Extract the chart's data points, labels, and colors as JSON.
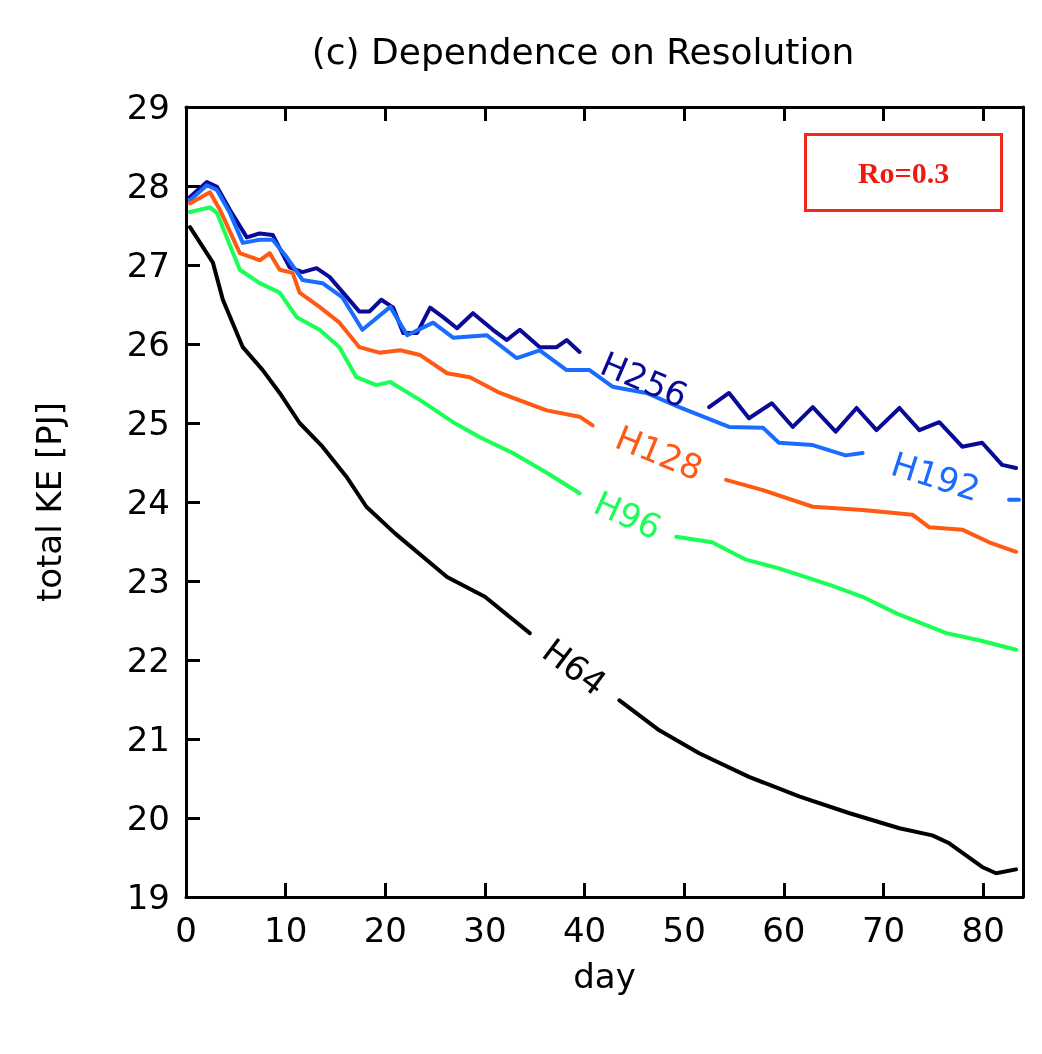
{
  "chart_data": {
    "type": "line",
    "title": "(c) Dependence on Resolution",
    "xlabel": "day",
    "ylabel": "total KE [PJ]",
    "annotations": [
      "Ro=0.3"
    ],
    "xlim": [
      0,
      84
    ],
    "xticks": [
      0,
      10,
      20,
      30,
      40,
      50,
      60,
      70,
      80
    ],
    "ylim": [
      19,
      29
    ],
    "yticks": [
      19,
      20,
      21,
      22,
      23,
      24,
      25,
      26,
      27,
      28,
      29
    ],
    "grid": false,
    "legend": false,
    "marker": "none",
    "line_style": "solid",
    "series": [
      {
        "name": "H256",
        "color": "#0a0a96",
        "x": [
          0.4,
          2.1,
          3.1,
          4.4,
          6.1,
          7.4,
          8.7,
          10.4,
          11.7,
          13.1,
          14.4,
          17.4,
          18.4,
          19.6,
          20.8,
          21.8,
          23.2,
          24.5,
          25.8,
          27.2,
          28.8,
          30.8,
          32.2,
          33.5,
          35.5,
          37.2,
          38.2,
          39.5,
          46,
          52.5,
          54.5,
          56.5,
          58.8,
          60.9,
          62.9,
          65.2,
          67.3,
          69.3,
          71.6,
          73.6,
          75.6,
          77.9,
          79.9,
          81.9,
          83.3
        ],
        "values": [
          27.86,
          28.05,
          27.99,
          27.7,
          27.35,
          27.4,
          27.38,
          26.97,
          26.91,
          26.96,
          26.85,
          26.41,
          26.41,
          26.56,
          26.46,
          26.14,
          26.14,
          26.46,
          26.34,
          26.2,
          26.39,
          26.18,
          26.05,
          26.18,
          25.96,
          25.96,
          26.05,
          25.9,
          null,
          25.2,
          25.38,
          25.06,
          25.25,
          24.95,
          25.2,
          24.89,
          25.19,
          24.91,
          25.19,
          24.91,
          25.01,
          24.7,
          24.75,
          24.47,
          24.43
        ]
      },
      {
        "name": "H192",
        "color": "#1a6cff",
        "x": [
          0.4,
          2.1,
          3.1,
          4.4,
          5.7,
          7.4,
          8.7,
          10.1,
          11.7,
          13.7,
          15.7,
          17.7,
          20.5,
          22.2,
          24.8,
          26.8,
          30.2,
          33.2,
          35.5,
          38.2,
          40.5,
          42.8,
          46.2,
          49.5,
          54.5,
          57.9,
          59.5,
          62.9,
          66.2,
          67.9,
          75,
          82.6,
          83.6
        ],
        "values": [
          27.82,
          28.01,
          27.95,
          27.66,
          27.28,
          27.32,
          27.32,
          27.1,
          26.81,
          26.77,
          26.59,
          26.18,
          26.47,
          26.11,
          26.27,
          26.08,
          26.11,
          25.82,
          25.92,
          25.67,
          25.67,
          25.46,
          25.38,
          25.2,
          24.95,
          24.94,
          24.75,
          24.72,
          24.59,
          24.62,
          null,
          24.03,
          24.03
        ]
      },
      {
        "name": "H128",
        "color": "#ff5a14",
        "x": [
          0.4,
          2.4,
          3.4,
          5.4,
          7.4,
          8.4,
          9.4,
          10.7,
          11.4,
          13.4,
          15.4,
          17.4,
          19.4,
          21.5,
          23.5,
          26.2,
          28.5,
          31.5,
          36.2,
          39.5,
          40.8,
          47.5,
          54.2,
          57.9,
          62.9,
          67.9,
          72.9,
          74.6,
          77.9,
          80.6,
          83.3
        ],
        "values": [
          27.78,
          27.92,
          27.7,
          27.15,
          27.06,
          27.15,
          26.94,
          26.9,
          26.65,
          26.47,
          26.27,
          25.96,
          25.89,
          25.92,
          25.86,
          25.63,
          25.58,
          25.38,
          25.16,
          25.08,
          24.97,
          null,
          24.28,
          24.15,
          23.94,
          23.9,
          23.84,
          23.68,
          23.65,
          23.49,
          23.37
        ]
      },
      {
        "name": "H96",
        "color": "#1aff55",
        "x": [
          0.4,
          2.4,
          3.1,
          5.4,
          7.4,
          9.4,
          11.1,
          13.4,
          15.4,
          17.1,
          19.1,
          20.5,
          23.5,
          26.8,
          29.5,
          32.8,
          36.2,
          39.5,
          44.3,
          49.2,
          52.8,
          56.2,
          59.5,
          64.6,
          67.9,
          71.3,
          76.3,
          79.6,
          83.3
        ],
        "values": [
          27.67,
          27.73,
          27.66,
          26.94,
          26.77,
          26.65,
          26.34,
          26.18,
          25.96,
          25.58,
          25.48,
          25.52,
          25.29,
          25.01,
          24.82,
          24.62,
          24.37,
          24.11,
          null,
          23.56,
          23.49,
          23.27,
          23.16,
          22.95,
          22.8,
          22.59,
          22.34,
          22.25,
          22.13
        ]
      },
      {
        "name": "H64",
        "color": "#000000",
        "x": [
          0.4,
          2.7,
          3.7,
          5.7,
          7.7,
          9.4,
          11.4,
          13.7,
          16.1,
          18.1,
          21,
          26.2,
          30,
          34.5,
          39,
          43.5,
          47.5,
          51.5,
          56.5,
          61.6,
          66.6,
          71.6,
          74.9,
          76.6,
          79.9,
          81.3,
          83.3
        ],
        "values": [
          27.48,
          27.03,
          26.56,
          25.96,
          25.67,
          25.38,
          25.0,
          24.7,
          24.32,
          23.94,
          23.6,
          23.05,
          22.8,
          22.34,
          null,
          21.49,
          21.11,
          20.82,
          20.52,
          20.27,
          20.06,
          19.87,
          19.78,
          19.68,
          19.38,
          19.3,
          19.35
        ]
      }
    ]
  }
}
